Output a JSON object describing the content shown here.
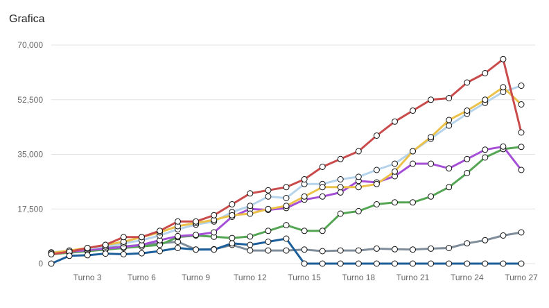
{
  "chart_data": {
    "type": "line",
    "title": "Grafica",
    "xlabel": "",
    "ylabel": "",
    "ylim": [
      0,
      70000
    ],
    "grid": true,
    "legend": "none",
    "x": [
      1,
      2,
      3,
      4,
      5,
      6,
      7,
      8,
      9,
      10,
      11,
      12,
      13,
      14,
      15,
      16,
      17,
      18,
      19,
      20,
      21,
      22,
      23,
      24,
      25,
      26,
      27
    ],
    "xticks": [
      {
        "x": 3,
        "label": "Turno 3"
      },
      {
        "x": 6,
        "label": "Turno 6"
      },
      {
        "x": 9,
        "label": "Turno 9"
      },
      {
        "x": 12,
        "label": "Turno 12"
      },
      {
        "x": 15,
        "label": "Turno 15"
      },
      {
        "x": 18,
        "label": "Turno 18"
      },
      {
        "x": 21,
        "label": "Turno 21"
      },
      {
        "x": 24,
        "label": "Turno 24"
      },
      {
        "x": 27,
        "label": "Turno 27"
      }
    ],
    "yticks": [
      {
        "y": 0,
        "label": "0"
      },
      {
        "y": 17500,
        "label": "17,500"
      },
      {
        "y": 35000,
        "label": "35,000"
      },
      {
        "y": 52500,
        "label": "52,500"
      },
      {
        "y": 70000,
        "label": "70,000"
      }
    ],
    "series": [
      {
        "color": "#7f8c99",
        "values": [
          3500,
          4000,
          4500,
          5000,
          5500,
          6000,
          6500,
          7000,
          4500,
          4600,
          6000,
          4200,
          4200,
          4200,
          4500,
          4000,
          4200,
          4200,
          4800,
          4600,
          4500,
          4800,
          5000,
          6500,
          7500,
          9000,
          10000
        ]
      },
      {
        "color": "#55a654",
        "values": [
          3000,
          3500,
          4000,
          4500,
          5000,
          5500,
          6000,
          8500,
          9000,
          8600,
          8200,
          8700,
          10500,
          12300,
          10500,
          10500,
          16000,
          16800,
          19000,
          19600,
          19600,
          21500,
          24500,
          29000,
          34000,
          36700,
          37400
        ]
      },
      {
        "color": "#a44fd6",
        "values": [
          3200,
          3800,
          4300,
          4800,
          5300,
          6000,
          7500,
          8800,
          9200,
          10000,
          15000,
          17500,
          17200,
          17800,
          20500,
          21500,
          22800,
          26500,
          26000,
          28000,
          32000,
          32000,
          30500,
          33500,
          36500,
          37500,
          30000
        ]
      },
      {
        "color": "#b5d3eb",
        "values": [
          3600,
          4100,
          4800,
          5500,
          6500,
          7500,
          9000,
          11000,
          12500,
          13500,
          16500,
          18500,
          21500,
          21000,
          25500,
          25500,
          27000,
          27800,
          30000,
          32000,
          36000,
          40000,
          44200,
          48000,
          51500,
          55000,
          57000
        ]
      },
      {
        "color": "#ecc14a",
        "values": [
          3400,
          4200,
          5000,
          6000,
          7000,
          8500,
          10000,
          12000,
          13000,
          14000,
          15500,
          16000,
          17500,
          18500,
          21500,
          24500,
          24500,
          24500,
          25500,
          29500,
          36000,
          40500,
          46000,
          49000,
          52500,
          56500,
          51000
        ]
      },
      {
        "color": "#c94b4b",
        "values": [
          3000,
          3800,
          5000,
          6000,
          8500,
          8500,
          10500,
          13500,
          13500,
          15500,
          19000,
          22500,
          23500,
          24500,
          27000,
          31000,
          33500,
          36000,
          41000,
          45500,
          49000,
          52500,
          53000,
          58000,
          61000,
          65500,
          42000
        ]
      },
      {
        "color": "#1d5f9a",
        "values": [
          0,
          2500,
          2700,
          3200,
          3000,
          3300,
          4000,
          5000,
          4500,
          4500,
          6500,
          6000,
          7000,
          8000,
          0,
          0,
          0,
          0,
          0,
          0,
          0,
          0,
          0,
          0,
          0,
          0,
          0
        ]
      }
    ]
  }
}
